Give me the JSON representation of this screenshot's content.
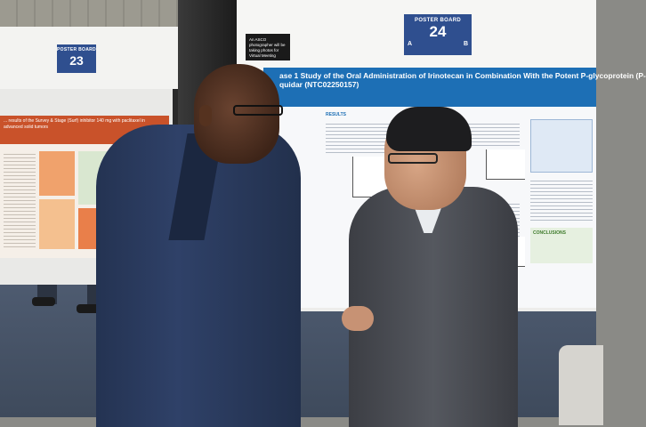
{
  "left_board": {
    "badge_label": "POSTER BOARD",
    "badge_number": "23",
    "poster_title": "... results of the Survey & Stage (Surf) inhibitor 140 mg with paclitaxel in advanced solid tumors"
  },
  "right_board": {
    "badge_label": "POSTER BOARD",
    "badge_number": "24",
    "badge_left_letter": "A",
    "badge_right_letter": "B",
    "asco_sign": "An ASCO photographer will be taking photos for Virtual Meeting",
    "poster_title_line1": "ase 1 Study of the Oral Administration of Irinotecan in Combination With the Potent P-glycoprotein (P-",
    "poster_title_line2": "quidar (NTC02250157)",
    "section_results": "RESULTS",
    "section_conclusions": "CONCLUSIONS"
  }
}
